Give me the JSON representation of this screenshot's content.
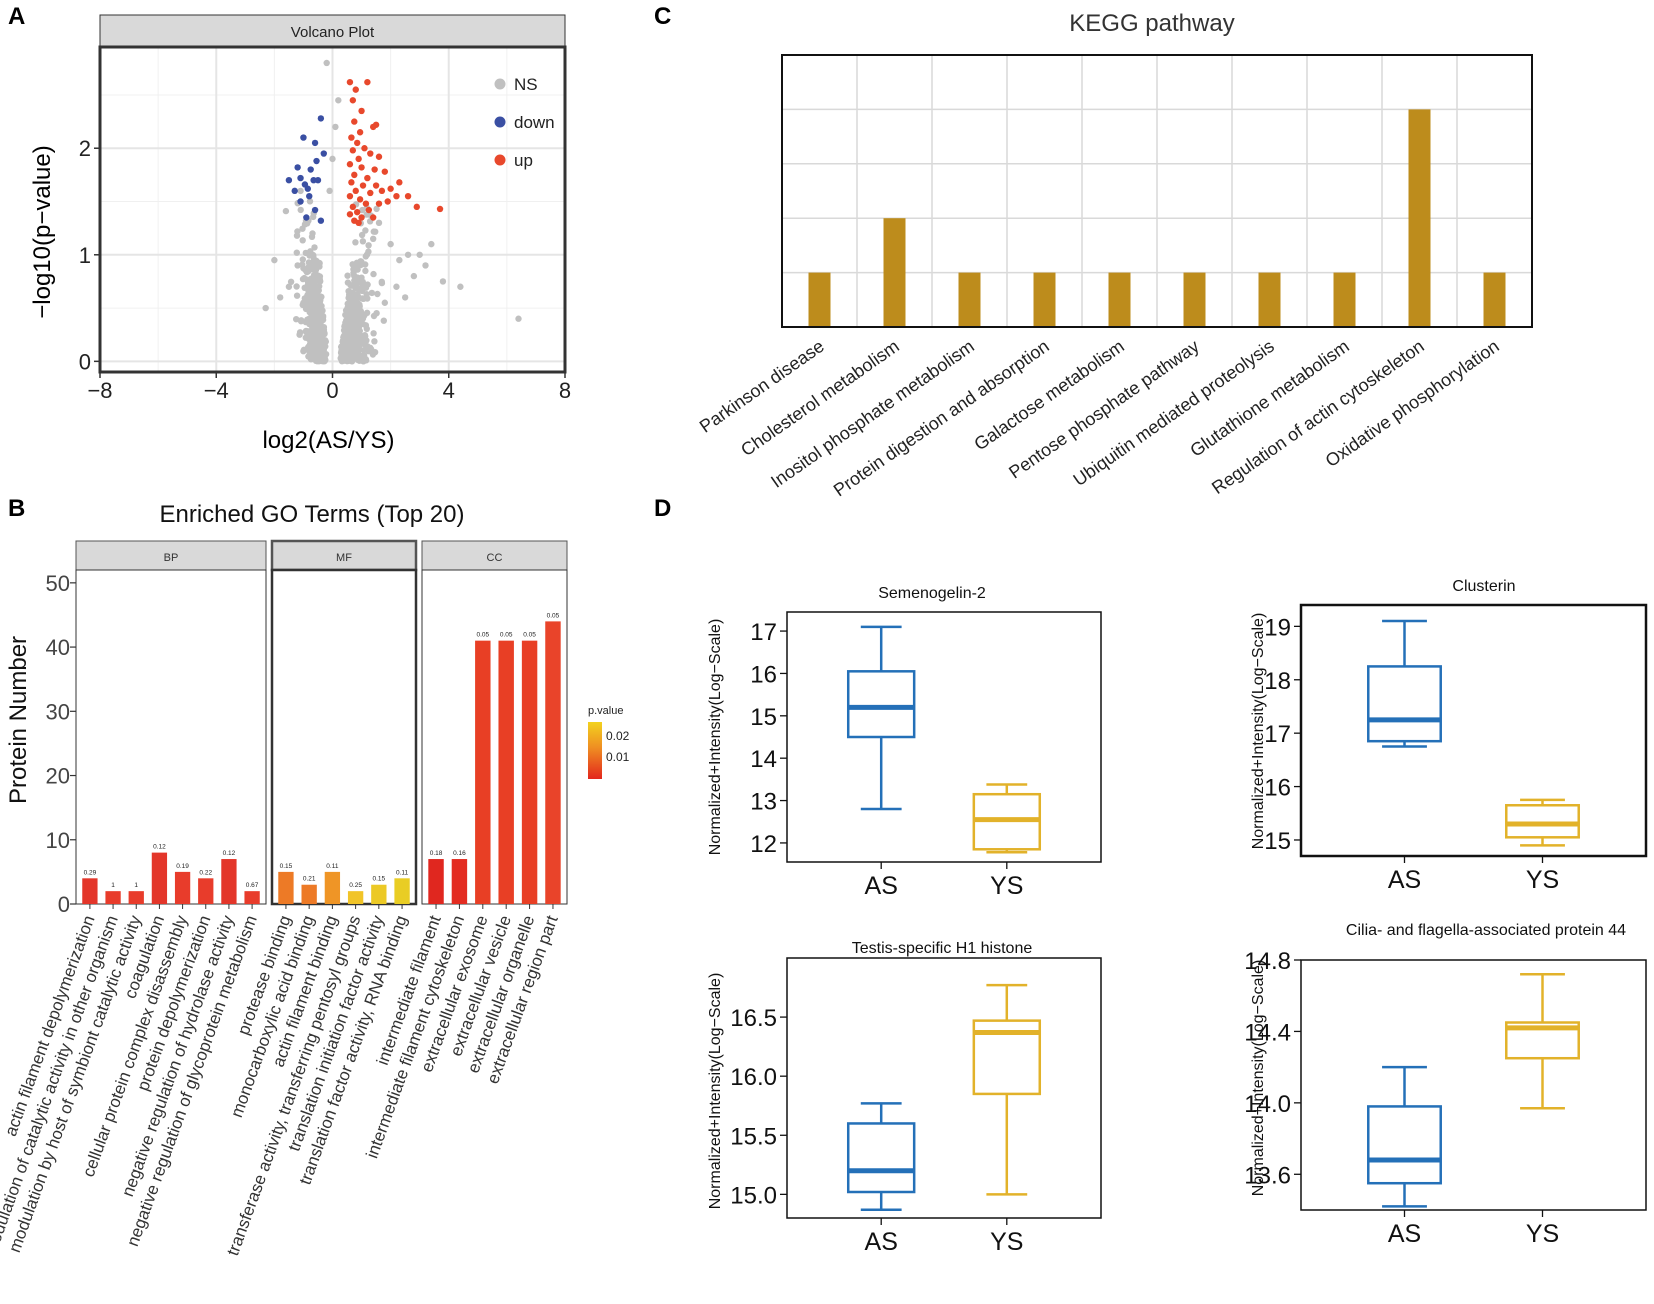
{
  "panels": {
    "A": "A",
    "B": "B",
    "C": "C",
    "D": "D"
  },
  "chart_data": [
    {
      "id": "volcano",
      "type": "scatter",
      "title": "Volcano Plot",
      "xlabel": "log2(AS/YS)",
      "ylabel": "−log10(p−value)",
      "xlim": [
        -8,
        8
      ],
      "ylim": [
        -0.1,
        2.95
      ],
      "xticks": [
        -8,
        -4,
        0,
        4,
        8
      ],
      "xtick_labels": [
        "−8",
        "−4",
        "0",
        "4",
        "8"
      ],
      "yticks": [
        0,
        1,
        2
      ],
      "yminor": [
        0.5,
        1.5,
        2.5
      ],
      "xminor": [
        -6,
        -2,
        2,
        6
      ],
      "grid": true,
      "legend": [
        {
          "label": "NS",
          "color": "#c0c0c0"
        },
        {
          "label": "down",
          "color": "#3a4fa3"
        },
        {
          "label": "up",
          "color": "#e8482c"
        }
      ],
      "ns_cloud_seed": 7,
      "ns_cloud_count": 900,
      "ns_outliers": [
        [
          -2.0,
          0.95
        ],
        [
          -1.8,
          0.6
        ],
        [
          -1.5,
          0.7
        ],
        [
          -1.2,
          0.9
        ],
        [
          -1.0,
          0.55
        ],
        [
          -2.3,
          0.5
        ],
        [
          2.0,
          1.1
        ],
        [
          2.3,
          0.95
        ],
        [
          2.6,
          1.0
        ],
        [
          3.2,
          0.9
        ],
        [
          3.4,
          1.1
        ],
        [
          3.8,
          0.75
        ],
        [
          4.4,
          0.7
        ],
        [
          6.4,
          0.4
        ],
        [
          3.0,
          1.0
        ],
        [
          2.8,
          0.8
        ],
        [
          1.6,
          1.3
        ],
        [
          1.4,
          1.15
        ],
        [
          2.2,
          0.7
        ],
        [
          1.8,
          0.55
        ],
        [
          2.5,
          0.6
        ],
        [
          -0.2,
          2.8
        ],
        [
          0.1,
          2.2
        ],
        [
          0.0,
          1.9
        ],
        [
          -0.1,
          1.6
        ],
        [
          0.2,
          2.45
        ]
      ],
      "down_points": [
        [
          -0.4,
          2.28
        ],
        [
          -1.0,
          2.1
        ],
        [
          -0.6,
          2.05
        ],
        [
          -0.3,
          1.95
        ],
        [
          -0.55,
          1.88
        ],
        [
          -1.2,
          1.82
        ],
        [
          -0.75,
          1.8
        ],
        [
          -1.5,
          1.7
        ],
        [
          -1.1,
          1.72
        ],
        [
          -0.95,
          1.66
        ],
        [
          -0.65,
          1.7
        ],
        [
          -0.85,
          1.62
        ],
        [
          -0.5,
          1.7
        ],
        [
          -1.3,
          1.6
        ],
        [
          -0.8,
          1.55
        ],
        [
          -1.1,
          1.5
        ],
        [
          -0.6,
          1.42
        ],
        [
          -0.9,
          1.35
        ],
        [
          -0.4,
          1.32
        ]
      ],
      "up_points": [
        [
          0.6,
          2.62
        ],
        [
          0.8,
          2.55
        ],
        [
          1.2,
          2.62
        ],
        [
          0.7,
          2.45
        ],
        [
          1.0,
          2.35
        ],
        [
          0.75,
          2.25
        ],
        [
          1.4,
          2.2
        ],
        [
          0.95,
          2.15
        ],
        [
          1.5,
          2.22
        ],
        [
          0.65,
          2.1
        ],
        [
          0.85,
          2.05
        ],
        [
          1.1,
          2.0
        ],
        [
          0.7,
          1.98
        ],
        [
          1.3,
          1.95
        ],
        [
          0.9,
          1.9
        ],
        [
          1.6,
          1.92
        ],
        [
          0.6,
          1.85
        ],
        [
          1.0,
          1.82
        ],
        [
          1.45,
          1.8
        ],
        [
          1.8,
          1.78
        ],
        [
          0.75,
          1.75
        ],
        [
          1.2,
          1.72
        ],
        [
          0.65,
          1.68
        ],
        [
          1.05,
          1.65
        ],
        [
          1.5,
          1.65
        ],
        [
          2.0,
          1.62
        ],
        [
          2.3,
          1.68
        ],
        [
          0.8,
          1.6
        ],
        [
          1.3,
          1.58
        ],
        [
          1.7,
          1.6
        ],
        [
          0.6,
          1.55
        ],
        [
          0.95,
          1.52
        ],
        [
          2.6,
          1.55
        ],
        [
          1.15,
          1.48
        ],
        [
          0.7,
          1.45
        ],
        [
          1.6,
          1.48
        ],
        [
          0.85,
          1.4
        ],
        [
          2.9,
          1.45
        ],
        [
          1.25,
          1.42
        ],
        [
          0.6,
          1.38
        ],
        [
          3.7,
          1.43
        ],
        [
          1.0,
          1.35
        ],
        [
          0.75,
          1.32
        ],
        [
          1.4,
          1.35
        ],
        [
          0.9,
          1.3
        ],
        [
          1.9,
          1.5
        ],
        [
          2.2,
          1.55
        ]
      ]
    },
    {
      "id": "kegg",
      "type": "bar",
      "title": "KEGG pathway",
      "categories": [
        "Parkinson disease",
        "Cholesterol metabolism",
        "Inositol phosphate metabolism",
        "Protein digestion and absorption",
        "Galactose metabolism",
        "Pentose phosphate pathway",
        "Ubiquitin mediated proteolysis",
        "Glutathione metabolism",
        "Regulation of actin cytoskeleton",
        "Oxidative phosphorylation"
      ],
      "values": [
        1,
        2,
        1,
        1,
        1,
        1,
        1,
        1,
        4,
        1
      ],
      "ylim": [
        0,
        5
      ],
      "color": "#bd8c1c"
    },
    {
      "id": "go",
      "type": "bar",
      "title": "Enriched GO Terms (Top 20)",
      "ylabel": "Protein Number",
      "ylim": [
        0,
        52
      ],
      "yticks": [
        0,
        10,
        20,
        30,
        40,
        50
      ],
      "legend_title": "p.value",
      "legend_ticks": [
        "0.02",
        "0.01"
      ],
      "facets": [
        {
          "name": "BP",
          "bold_border": false,
          "categories": [
            "actin filament depolymerization",
            "modulation of catalytic activity in other organism",
            "modulation by host of symbiont catalytic activity",
            "coagulation",
            "cellular protein complex disassembly",
            "protein depolymerization",
            "negative regulation of hydrolase activity",
            "negative regulation of glycoprotein metabolism"
          ],
          "values": [
            4,
            2,
            2,
            8,
            5,
            4,
            7,
            2
          ],
          "labels": [
            "0.29",
            "1",
            "1",
            "0.12",
            "0.19",
            "0.22",
            "0.12",
            "0.67"
          ],
          "colors": [
            "#e3362a",
            "#e83c2b",
            "#e83c2b",
            "#e3362a",
            "#e83c2b",
            "#e83c2b",
            "#e3362a",
            "#e83c2b"
          ]
        },
        {
          "name": "MF",
          "bold_border": true,
          "categories": [
            "protease binding",
            "monocarboxylic acid binding",
            "actin filament binding",
            "transferase activity, transferring pentosyl groups",
            "translation initiation factor activity",
            "translation factor activity, RNA binding"
          ],
          "values": [
            5,
            3,
            5,
            2,
            3,
            4
          ],
          "labels": [
            "0.15",
            "0.21",
            "0.11",
            "0.25",
            "0.15",
            "0.11"
          ],
          "colors": [
            "#ed7a26",
            "#ed7a26",
            "#ef9526",
            "#f1c428",
            "#ecc925",
            "#e9cd24"
          ]
        },
        {
          "name": "CC",
          "bold_border": false,
          "categories": [
            "intermediate filament",
            "intermediate filament cytoskeleton",
            "extracellular exosome",
            "extracellular vesicle",
            "extracellular organelle",
            "extracellular region part"
          ],
          "values": [
            7,
            7,
            41,
            41,
            41,
            44
          ],
          "labels": [
            "0.18",
            "0.16",
            "0.05",
            "0.05",
            "0.05",
            "0.05"
          ],
          "colors": [
            "#e0271f",
            "#e32c21",
            "#e83f25",
            "#e83f25",
            "#e83f25",
            "#e9442a"
          ]
        }
      ]
    },
    {
      "id": "box_semenogelin",
      "type": "box",
      "title": "Semenogelin-2",
      "ylabel": "Normalized+Intensity(Log−Scale)",
      "ylim": [
        11.55,
        17.45
      ],
      "yticks": [
        12,
        13,
        14,
        15,
        16,
        17
      ],
      "ytick_labels": [
        "12",
        "13",
        "14",
        "15",
        "16",
        "17"
      ],
      "categories": [
        "AS",
        "YS"
      ],
      "colors": [
        "#2470b8",
        "#e2b22a"
      ],
      "boxes": [
        {
          "min": 12.8,
          "q1": 14.5,
          "median": 15.2,
          "q3": 16.05,
          "max": 17.1
        },
        {
          "min": 11.78,
          "q1": 11.85,
          "median": 12.55,
          "q3": 13.15,
          "max": 13.38
        }
      ],
      "bold_frame": false
    },
    {
      "id": "box_clusterin",
      "type": "box",
      "title": "Clusterin",
      "ylabel": "Normalized+Intensity(Log−Scale)",
      "ylim": [
        14.7,
        19.4
      ],
      "yticks": [
        15,
        16,
        17,
        18,
        19
      ],
      "ytick_labels": [
        "15",
        "16",
        "17",
        "18",
        "19"
      ],
      "categories": [
        "AS",
        "YS"
      ],
      "colors": [
        "#2470b8",
        "#e2b22a"
      ],
      "boxes": [
        {
          "min": 16.75,
          "q1": 16.85,
          "median": 17.25,
          "q3": 18.25,
          "max": 19.1
        },
        {
          "min": 14.9,
          "q1": 15.05,
          "median": 15.3,
          "q3": 15.65,
          "max": 15.75
        }
      ],
      "bold_frame": true
    },
    {
      "id": "box_h1",
      "type": "box",
      "title": "Testis-specific H1 histone",
      "ylabel": "Normalized+Intensity(Log−Scale)",
      "ylim": [
        14.8,
        17.0
      ],
      "yticks": [
        15.0,
        15.5,
        16.0,
        16.5
      ],
      "ytick_labels": [
        "15.0",
        "15.5",
        "16.0",
        "16.5"
      ],
      "categories": [
        "AS",
        "YS"
      ],
      "colors": [
        "#2470b8",
        "#e2b22a"
      ],
      "boxes": [
        {
          "min": 14.87,
          "q1": 15.02,
          "median": 15.2,
          "q3": 15.6,
          "max": 15.77
        },
        {
          "min": 15.0,
          "q1": 15.85,
          "median": 16.37,
          "q3": 16.47,
          "max": 16.77
        }
      ],
      "bold_frame": false
    },
    {
      "id": "box_cfap44",
      "type": "box",
      "title": "Cilia- and flagella-associated protein 44",
      "ylabel": "Normalized+Intensity(Log−Scale)",
      "ylim": [
        13.4,
        14.8
      ],
      "yticks": [
        13.6,
        14.0,
        14.4,
        14.8
      ],
      "ytick_labels": [
        "13.6",
        "14.0",
        "14.4",
        "14.8"
      ],
      "categories": [
        "AS",
        "YS"
      ],
      "colors": [
        "#2470b8",
        "#e2b22a"
      ],
      "boxes": [
        {
          "min": 13.42,
          "q1": 13.55,
          "median": 13.68,
          "q3": 13.98,
          "max": 14.2
        },
        {
          "min": 13.97,
          "q1": 14.25,
          "median": 14.42,
          "q3": 14.45,
          "max": 14.72
        }
      ],
      "bold_frame": false
    }
  ]
}
